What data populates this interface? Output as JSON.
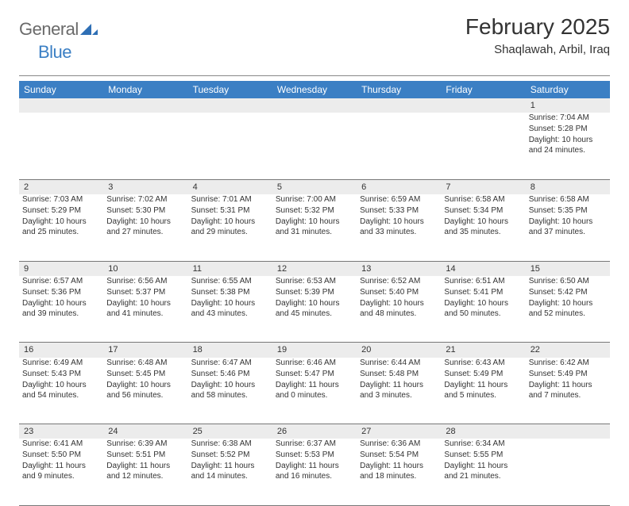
{
  "brand": {
    "general": "General",
    "blue": "Blue"
  },
  "title": "February 2025",
  "subtitle": "Shaqlawah, Arbil, Iraq",
  "colors": {
    "header_bg": "#3b7fc4",
    "header_text": "#ffffff",
    "daynum_bg": "#ececec",
    "text": "#333333",
    "rule": "#777777",
    "logo_gray": "#6a6a6a",
    "logo_blue": "#3b7fc4",
    "page_bg": "#ffffff"
  },
  "day_names": [
    "Sunday",
    "Monday",
    "Tuesday",
    "Wednesday",
    "Thursday",
    "Friday",
    "Saturday"
  ],
  "weeks": [
    [
      {
        "n": "",
        "lines": []
      },
      {
        "n": "",
        "lines": []
      },
      {
        "n": "",
        "lines": []
      },
      {
        "n": "",
        "lines": []
      },
      {
        "n": "",
        "lines": []
      },
      {
        "n": "",
        "lines": []
      },
      {
        "n": "1",
        "lines": [
          "Sunrise: 7:04 AM",
          "Sunset: 5:28 PM",
          "Daylight: 10 hours and 24 minutes."
        ]
      }
    ],
    [
      {
        "n": "2",
        "lines": [
          "Sunrise: 7:03 AM",
          "Sunset: 5:29 PM",
          "Daylight: 10 hours and 25 minutes."
        ]
      },
      {
        "n": "3",
        "lines": [
          "Sunrise: 7:02 AM",
          "Sunset: 5:30 PM",
          "Daylight: 10 hours and 27 minutes."
        ]
      },
      {
        "n": "4",
        "lines": [
          "Sunrise: 7:01 AM",
          "Sunset: 5:31 PM",
          "Daylight: 10 hours and 29 minutes."
        ]
      },
      {
        "n": "5",
        "lines": [
          "Sunrise: 7:00 AM",
          "Sunset: 5:32 PM",
          "Daylight: 10 hours and 31 minutes."
        ]
      },
      {
        "n": "6",
        "lines": [
          "Sunrise: 6:59 AM",
          "Sunset: 5:33 PM",
          "Daylight: 10 hours and 33 minutes."
        ]
      },
      {
        "n": "7",
        "lines": [
          "Sunrise: 6:58 AM",
          "Sunset: 5:34 PM",
          "Daylight: 10 hours and 35 minutes."
        ]
      },
      {
        "n": "8",
        "lines": [
          "Sunrise: 6:58 AM",
          "Sunset: 5:35 PM",
          "Daylight: 10 hours and 37 minutes."
        ]
      }
    ],
    [
      {
        "n": "9",
        "lines": [
          "Sunrise: 6:57 AM",
          "Sunset: 5:36 PM",
          "Daylight: 10 hours and 39 minutes."
        ]
      },
      {
        "n": "10",
        "lines": [
          "Sunrise: 6:56 AM",
          "Sunset: 5:37 PM",
          "Daylight: 10 hours and 41 minutes."
        ]
      },
      {
        "n": "11",
        "lines": [
          "Sunrise: 6:55 AM",
          "Sunset: 5:38 PM",
          "Daylight: 10 hours and 43 minutes."
        ]
      },
      {
        "n": "12",
        "lines": [
          "Sunrise: 6:53 AM",
          "Sunset: 5:39 PM",
          "Daylight: 10 hours and 45 minutes."
        ]
      },
      {
        "n": "13",
        "lines": [
          "Sunrise: 6:52 AM",
          "Sunset: 5:40 PM",
          "Daylight: 10 hours and 48 minutes."
        ]
      },
      {
        "n": "14",
        "lines": [
          "Sunrise: 6:51 AM",
          "Sunset: 5:41 PM",
          "Daylight: 10 hours and 50 minutes."
        ]
      },
      {
        "n": "15",
        "lines": [
          "Sunrise: 6:50 AM",
          "Sunset: 5:42 PM",
          "Daylight: 10 hours and 52 minutes."
        ]
      }
    ],
    [
      {
        "n": "16",
        "lines": [
          "Sunrise: 6:49 AM",
          "Sunset: 5:43 PM",
          "Daylight: 10 hours and 54 minutes."
        ]
      },
      {
        "n": "17",
        "lines": [
          "Sunrise: 6:48 AM",
          "Sunset: 5:45 PM",
          "Daylight: 10 hours and 56 minutes."
        ]
      },
      {
        "n": "18",
        "lines": [
          "Sunrise: 6:47 AM",
          "Sunset: 5:46 PM",
          "Daylight: 10 hours and 58 minutes."
        ]
      },
      {
        "n": "19",
        "lines": [
          "Sunrise: 6:46 AM",
          "Sunset: 5:47 PM",
          "Daylight: 11 hours and 0 minutes."
        ]
      },
      {
        "n": "20",
        "lines": [
          "Sunrise: 6:44 AM",
          "Sunset: 5:48 PM",
          "Daylight: 11 hours and 3 minutes."
        ]
      },
      {
        "n": "21",
        "lines": [
          "Sunrise: 6:43 AM",
          "Sunset: 5:49 PM",
          "Daylight: 11 hours and 5 minutes."
        ]
      },
      {
        "n": "22",
        "lines": [
          "Sunrise: 6:42 AM",
          "Sunset: 5:49 PM",
          "Daylight: 11 hours and 7 minutes."
        ]
      }
    ],
    [
      {
        "n": "23",
        "lines": [
          "Sunrise: 6:41 AM",
          "Sunset: 5:50 PM",
          "Daylight: 11 hours and 9 minutes."
        ]
      },
      {
        "n": "24",
        "lines": [
          "Sunrise: 6:39 AM",
          "Sunset: 5:51 PM",
          "Daylight: 11 hours and 12 minutes."
        ]
      },
      {
        "n": "25",
        "lines": [
          "Sunrise: 6:38 AM",
          "Sunset: 5:52 PM",
          "Daylight: 11 hours and 14 minutes."
        ]
      },
      {
        "n": "26",
        "lines": [
          "Sunrise: 6:37 AM",
          "Sunset: 5:53 PM",
          "Daylight: 11 hours and 16 minutes."
        ]
      },
      {
        "n": "27",
        "lines": [
          "Sunrise: 6:36 AM",
          "Sunset: 5:54 PM",
          "Daylight: 11 hours and 18 minutes."
        ]
      },
      {
        "n": "28",
        "lines": [
          "Sunrise: 6:34 AM",
          "Sunset: 5:55 PM",
          "Daylight: 11 hours and 21 minutes."
        ]
      },
      {
        "n": "",
        "lines": []
      }
    ]
  ]
}
